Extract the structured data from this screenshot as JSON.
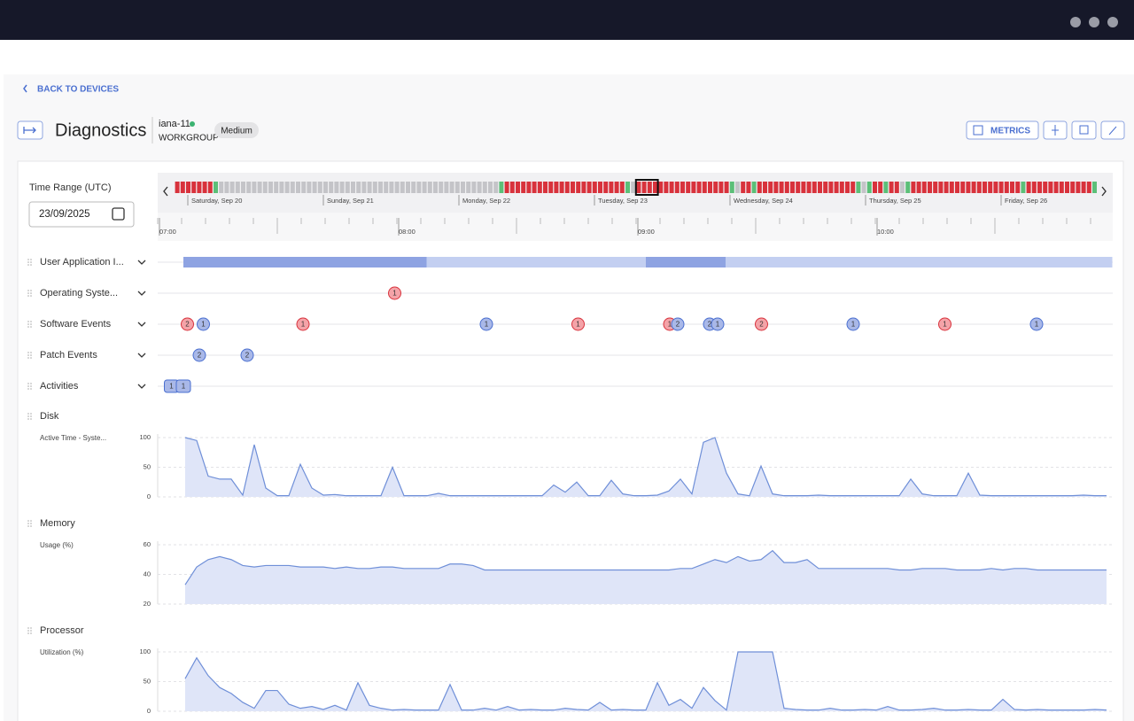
{
  "back_link": "BACK TO DEVICES",
  "header": {
    "title": "Diagnostics",
    "device": "iana-11",
    "group": "WORKGROUP",
    "badge": "Medium",
    "metrics_button": "METRICS"
  },
  "time_range": {
    "label": "Time Range (UTC)",
    "date": "23/09/2025",
    "days": [
      "Saturday, Sep 20",
      "Sunday, Sep 21",
      "Monday, Sep 22",
      "Tuesday, Sep 23",
      "Wednesday, Sep 24",
      "Thursday, Sep 25",
      "Friday, Sep 26"
    ],
    "hours": [
      {
        "value": 0,
        "label": "07:00"
      },
      {
        "value": 60,
        "label": "08:00"
      },
      {
        "value": 120,
        "label": "09:00"
      },
      {
        "value": 180,
        "label": "10:00"
      }
    ],
    "strip": [
      {
        "status": "critical",
        "hours": 7
      },
      {
        "status": "ok",
        "hours": 1
      },
      {
        "status": "none",
        "hours": 51
      },
      {
        "status": "ok",
        "hours": 1
      },
      {
        "status": "critical",
        "hours": 22
      },
      {
        "status": "ok",
        "hours": 1
      },
      {
        "status": "none",
        "hours": 1
      },
      {
        "status": "critical",
        "hours": 17
      },
      {
        "status": "ok",
        "hours": 1
      },
      {
        "status": "none",
        "hours": 1
      },
      {
        "status": "critical",
        "hours": 2
      },
      {
        "status": "ok",
        "hours": 1
      },
      {
        "status": "critical",
        "hours": 18
      },
      {
        "status": "ok",
        "hours": 1
      },
      {
        "status": "none",
        "hours": 1
      },
      {
        "status": "ok",
        "hours": 1
      },
      {
        "status": "critical",
        "hours": 2
      },
      {
        "status": "ok",
        "hours": 1
      },
      {
        "status": "critical",
        "hours": 2
      },
      {
        "status": "none",
        "hours": 1
      },
      {
        "status": "ok",
        "hours": 1
      },
      {
        "status": "critical",
        "hours": 20
      },
      {
        "status": "ok",
        "hours": 1
      },
      {
        "status": "critical",
        "hours": 12
      },
      {
        "status": "ok",
        "hours": 1
      }
    ],
    "selection": {
      "start": 84,
      "hours": 4
    }
  },
  "rows": [
    {
      "label": "User Application I...",
      "ranges": [
        {
          "start": 6,
          "end": 239,
          "level": "low"
        },
        {
          "start": 6,
          "end": 67,
          "level": "high"
        },
        {
          "start": 122,
          "end": 142,
          "level": "high"
        }
      ]
    },
    {
      "label": "Operating Syste...",
      "events": [
        {
          "t": 59,
          "count": 1,
          "kind": "error"
        }
      ]
    },
    {
      "label": "Software Events",
      "events": [
        {
          "t": 7,
          "count": 2,
          "kind": "error"
        },
        {
          "t": 11,
          "count": 1,
          "kind": "info"
        },
        {
          "t": 36,
          "count": 1,
          "kind": "error"
        },
        {
          "t": 82,
          "count": 1,
          "kind": "info"
        },
        {
          "t": 105,
          "count": 1,
          "kind": "error"
        },
        {
          "t": 128,
          "count": 1,
          "kind": "error"
        },
        {
          "t": 130,
          "count": 2,
          "kind": "info"
        },
        {
          "t": 138,
          "count": 2,
          "kind": "info"
        },
        {
          "t": 140,
          "count": 1,
          "kind": "info"
        },
        {
          "t": 151,
          "count": 2,
          "kind": "error"
        },
        {
          "t": 174,
          "count": 1,
          "kind": "info"
        },
        {
          "t": 197,
          "count": 1,
          "kind": "error"
        },
        {
          "t": 220,
          "count": 1,
          "kind": "info"
        }
      ]
    },
    {
      "label": "Patch Events",
      "events": [
        {
          "t": 10,
          "count": 2,
          "kind": "info"
        },
        {
          "t": 22,
          "count": 2,
          "kind": "info"
        }
      ]
    },
    {
      "label": "Activities",
      "shape": "square",
      "events": [
        {
          "t": 3,
          "count": 1,
          "kind": "info"
        },
        {
          "t": 6,
          "count": 1,
          "kind": "info"
        }
      ]
    }
  ],
  "charts": [
    {
      "type": "line",
      "title": "Disk",
      "ylabel": "Active Time - Syste...",
      "color": "#6f8fd8",
      "ylim": [
        0,
        100
      ],
      "yticks": [
        0,
        50,
        100
      ],
      "values": [
        100,
        95,
        35,
        30,
        30,
        3,
        88,
        15,
        2,
        2,
        55,
        15,
        3,
        4,
        2,
        2,
        2,
        2,
        50,
        2,
        2,
        2,
        6,
        2,
        2,
        2,
        2,
        2,
        2,
        2,
        2,
        2,
        20,
        8,
        25,
        2,
        2,
        28,
        5,
        2,
        2,
        3,
        10,
        30,
        5,
        92,
        100,
        40,
        5,
        2,
        52,
        5,
        2,
        2,
        2,
        3,
        2,
        2,
        2,
        2,
        2,
        2,
        2,
        30,
        5,
        2,
        2,
        2,
        40,
        3,
        2,
        2,
        2,
        2,
        2,
        2,
        2,
        2,
        3,
        2,
        2
      ]
    },
    {
      "type": "line",
      "title": "Memory",
      "ylabel": "Usage (%)",
      "color": "#6f8fd8",
      "ylim": [
        20,
        60
      ],
      "yticks": [
        20,
        40,
        60
      ],
      "values": [
        33,
        45,
        50,
        52,
        50,
        46,
        45,
        46,
        46,
        46,
        45,
        45,
        45,
        44,
        45,
        44,
        44,
        45,
        45,
        44,
        44,
        44,
        44,
        47,
        47,
        46,
        43,
        43,
        43,
        43,
        43,
        43,
        43,
        43,
        43,
        43,
        43,
        43,
        43,
        43,
        43,
        43,
        43,
        44,
        44,
        47,
        50,
        48,
        52,
        49,
        50,
        56,
        48,
        48,
        50,
        44,
        44,
        44,
        44,
        44,
        44,
        44,
        43,
        43,
        44,
        44,
        44,
        43,
        43,
        43,
        44,
        43,
        44,
        44,
        43,
        43,
        43,
        43,
        43,
        43,
        43
      ]
    },
    {
      "type": "line",
      "title": "Processor",
      "ylabel": "Utilization (%)",
      "color": "#6f8fd8",
      "ylim": [
        0,
        100
      ],
      "yticks": [
        0,
        50,
        100
      ],
      "values": [
        55,
        90,
        60,
        40,
        30,
        15,
        5,
        35,
        35,
        12,
        5,
        8,
        3,
        10,
        2,
        48,
        10,
        5,
        2,
        3,
        2,
        2,
        2,
        45,
        2,
        2,
        5,
        2,
        8,
        2,
        3,
        2,
        2,
        5,
        3,
        2,
        15,
        2,
        3,
        2,
        2,
        48,
        10,
        20,
        5,
        40,
        18,
        2,
        100,
        100,
        100,
        100,
        5,
        3,
        2,
        2,
        5,
        2,
        2,
        3,
        2,
        8,
        2,
        2,
        3,
        5,
        2,
        2,
        3,
        2,
        2,
        20,
        3,
        2,
        3,
        2,
        2,
        2,
        2,
        3,
        2
      ]
    }
  ]
}
